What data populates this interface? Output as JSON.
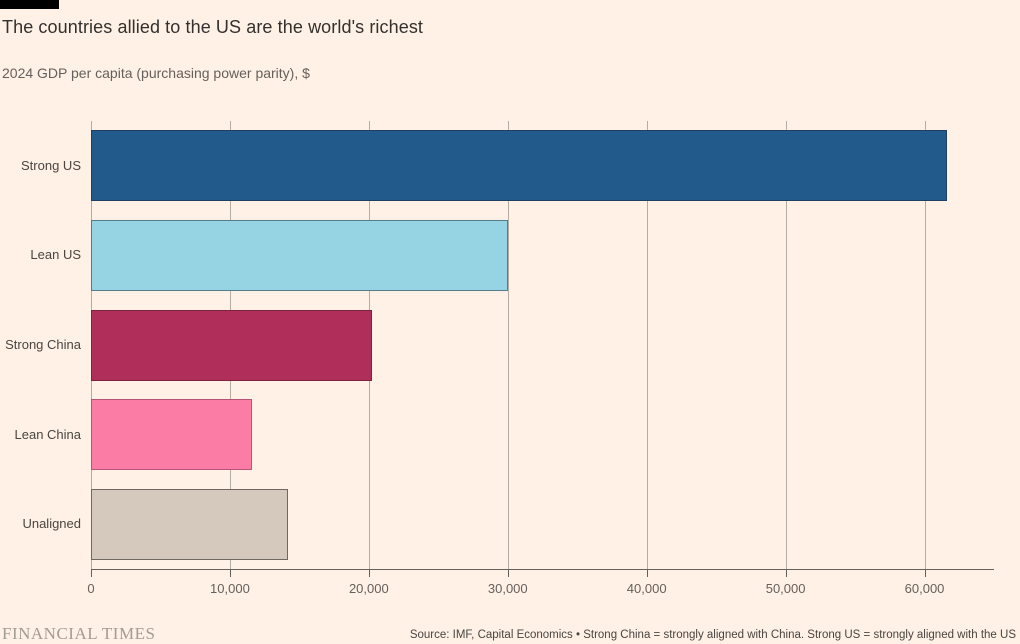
{
  "page": {
    "background": "#fff1e5"
  },
  "header": {
    "title": "The countries allied to the US are the world's richest",
    "subtitle": "2024 GDP per capita (purchasing power parity), $"
  },
  "chart_data": {
    "type": "bar",
    "orientation": "horizontal",
    "title": "The countries allied to the US are the world's richest",
    "subtitle": "2024 GDP per capita (purchasing power parity), $",
    "categories": [
      "Strong US",
      "Lean US",
      "Strong China",
      "Lean China",
      "Unaligned"
    ],
    "values": [
      61600,
      30000,
      20200,
      11600,
      14200
    ],
    "bar_colors": [
      "#235a8c",
      "#96d3e3",
      "#b02f5a",
      "#fb7ca5",
      "#d5c9be"
    ],
    "bar_border_colors": [
      "#1d3f63",
      "#567c8c",
      "#7e2242",
      "#b65578",
      "#6f6860"
    ],
    "xlabel": "",
    "ylabel": "",
    "xlim": [
      0,
      65000
    ],
    "x_ticks": [
      0,
      10000,
      20000,
      30000,
      40000,
      50000,
      60000
    ],
    "x_tick_labels": [
      "0",
      "10,000",
      "20,000",
      "30,000",
      "40,000",
      "50,000",
      "60,000"
    ],
    "grid": "vertical-only",
    "legend": "none",
    "background": "#fff1e5",
    "gridline_color": "#b5ada4",
    "axis_color": "#66605c"
  },
  "footer": {
    "logo": "FINANCIAL TIMES",
    "source": "Source: IMF, Capital Economics • Strong China = strongly aligned with China. Strong US = strongly aligned with the US"
  }
}
